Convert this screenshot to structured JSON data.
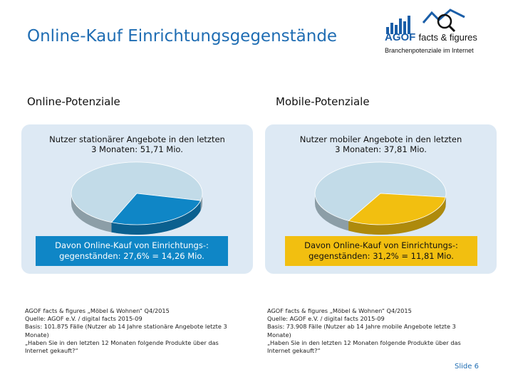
{
  "header": {
    "title": "Online-Kauf Einrichtungsgegenstände"
  },
  "logo": {
    "brand": "AGOF",
    "tagline": "facts & figures",
    "subtitle": "Branchenpotenziale im Internet"
  },
  "left": {
    "heading": "Online-Potenziale",
    "caption_line1": "Nutzer stationärer Angebote in den letzten",
    "caption_line2": "3 Monaten: 51,71 Mio.",
    "callout_line1": "Davon Online-Kauf von Einrichtungs-:",
    "callout_line2": "gegenständen: 27,6% = 14,26 Mio.",
    "share_percent": 27.6,
    "slice_color": "#0f86c6",
    "rest_color": "#c2dbe8",
    "source_lines": [
      "AGOF facts & figures „Möbel & Wohnen“ Q4/2015",
      "Quelle: AGOF e.V. / digital facts 2015-09",
      "Basis: 101.875 Fälle (Nutzer ab 14 Jahre stationäre Angebote letzte 3 Monate)",
      "„Haben Sie in den letzten 12 Monaten folgende Produkte über das Internet gekauft?“"
    ]
  },
  "right": {
    "heading": "Mobile-Potenziale",
    "caption_line1": "Nutzer mobiler Angebote in den letzten",
    "caption_line2": "3 Monaten: 37,81 Mio.",
    "callout_line1": "Davon Online-Kauf von Einrichtungs-:",
    "callout_line2": "gegenständen: 31,2% = 11,81 Mio.",
    "share_percent": 31.2,
    "slice_color": "#f2bf10",
    "rest_color": "#c2dbe8",
    "source_lines": [
      "AGOF facts & figures „Möbel & Wohnen“ Q4/2015",
      "Quelle: AGOF e.V. / digital facts 2015-09",
      "Basis: 73.908 Fälle (Nutzer ab 14 Jahre mobile Angebote letzte 3 Monate)",
      "„Haben Sie in den letzten 12 Monaten folgende Produkte über das Internet gekauft?“"
    ]
  },
  "footer": {
    "slide": "Slide 6"
  }
}
